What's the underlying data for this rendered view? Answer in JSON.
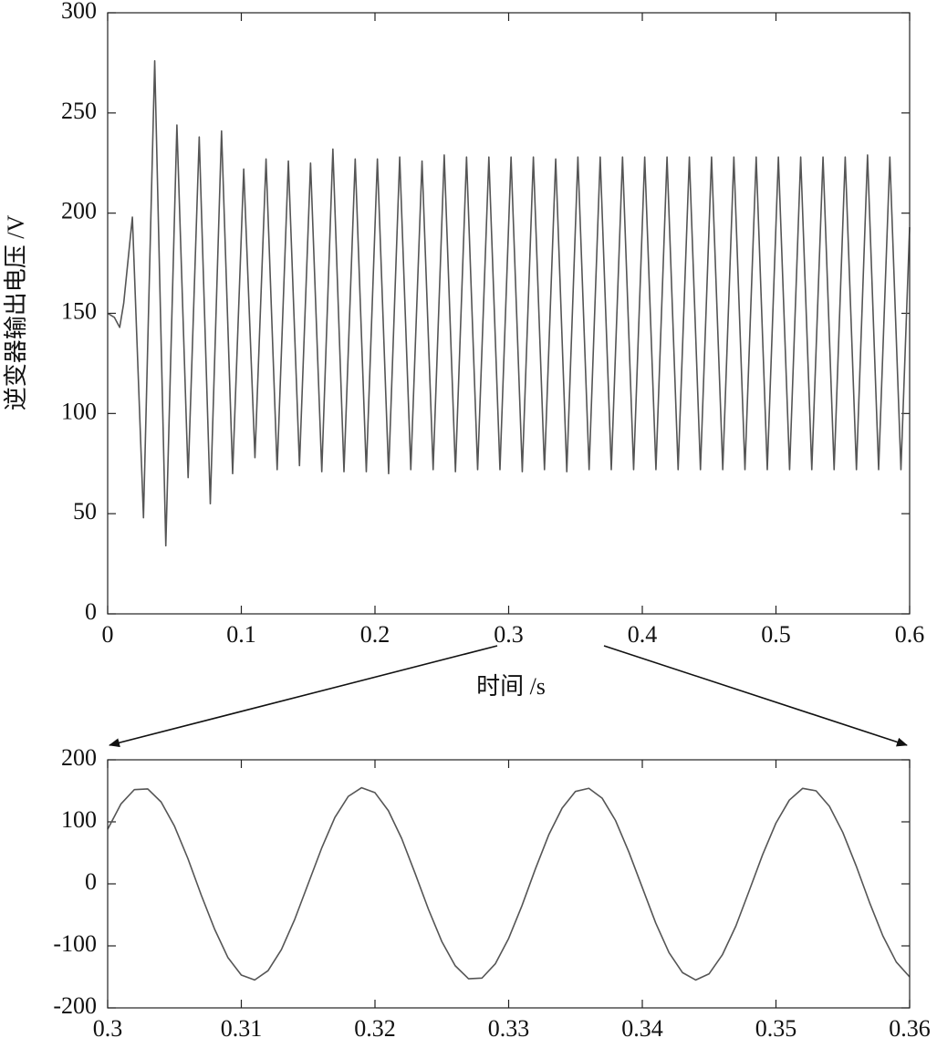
{
  "chart_data": [
    {
      "type": "line",
      "ylabel": "逆变器输出电压 /V",
      "xlabel": "时间 /s",
      "color": "#555555",
      "xlim": [
        0,
        0.6
      ],
      "ylim": [
        0,
        300
      ],
      "xticks": [
        0,
        0.1,
        0.2,
        0.3,
        0.4,
        0.5,
        0.6
      ],
      "yticks": [
        0,
        50,
        100,
        150,
        200,
        250,
        300
      ],
      "x": [
        0,
        0.005,
        0.009,
        0.012,
        0.0185,
        0.0268,
        0.0352,
        0.0435,
        0.0518,
        0.0602,
        0.0685,
        0.0768,
        0.0852,
        0.0935,
        0.1018,
        0.1102,
        0.1185,
        0.1268,
        0.1352,
        0.1435,
        0.1518,
        0.1602,
        0.1685,
        0.1768,
        0.1852,
        0.1935,
        0.2018,
        0.2102,
        0.2185,
        0.2268,
        0.2352,
        0.2435,
        0.2518,
        0.2602,
        0.2685,
        0.2768,
        0.2852,
        0.2935,
        0.3018,
        0.3102,
        0.3185,
        0.3268,
        0.3352,
        0.3435,
        0.3518,
        0.3602,
        0.3685,
        0.3768,
        0.3852,
        0.3935,
        0.4018,
        0.4102,
        0.4185,
        0.4268,
        0.4352,
        0.4435,
        0.4518,
        0.4602,
        0.4685,
        0.4768,
        0.4852,
        0.4935,
        0.5018,
        0.5102,
        0.5185,
        0.5268,
        0.5352,
        0.5435,
        0.5518,
        0.5602,
        0.5685,
        0.5768,
        0.5852,
        0.5935,
        0.6
      ],
      "values": [
        150,
        148,
        143,
        155,
        198,
        48,
        276,
        34,
        244,
        68,
        238,
        55,
        241,
        70,
        222,
        78,
        227,
        72,
        226,
        74,
        225,
        71,
        232,
        71,
        227,
        71,
        227,
        70,
        228,
        72,
        226,
        72,
        229,
        71,
        228,
        72,
        228,
        72,
        228,
        71,
        228,
        72,
        227,
        71,
        228,
        72,
        228,
        72,
        228,
        72,
        228,
        72,
        228,
        72,
        228,
        72,
        228,
        72,
        228,
        72,
        228,
        72,
        228,
        72,
        228,
        72,
        228,
        72,
        228,
        72,
        229,
        72,
        228,
        72,
        193
      ]
    },
    {
      "type": "line",
      "color": "#555555",
      "xlim": [
        0.3,
        0.36
      ],
      "ylim": [
        -200,
        200
      ],
      "xticks": [
        0.3,
        0.31,
        0.32,
        0.33,
        0.34,
        0.35,
        0.36
      ],
      "yticks": [
        -200,
        -100,
        0,
        100,
        200
      ],
      "x": [
        0.3,
        0.301,
        0.302,
        0.303,
        0.304,
        0.305,
        0.306,
        0.307,
        0.308,
        0.309,
        0.31,
        0.311,
        0.312,
        0.313,
        0.314,
        0.315,
        0.316,
        0.317,
        0.318,
        0.319,
        0.32,
        0.321,
        0.322,
        0.323,
        0.324,
        0.325,
        0.326,
        0.327,
        0.328,
        0.329,
        0.33,
        0.331,
        0.332,
        0.333,
        0.334,
        0.335,
        0.336,
        0.337,
        0.338,
        0.339,
        0.34,
        0.341,
        0.342,
        0.343,
        0.344,
        0.345,
        0.346,
        0.347,
        0.348,
        0.349,
        0.35,
        0.351,
        0.352,
        0.353,
        0.354,
        0.355,
        0.356,
        0.357,
        0.358,
        0.359,
        0.36
      ],
      "values": [
        88,
        129,
        152,
        153,
        132,
        93,
        41,
        -18,
        -73,
        -119,
        -147,
        -155,
        -140,
        -106,
        -57,
        0,
        57,
        107,
        141,
        155,
        147,
        118,
        73,
        17,
        -41,
        -93,
        -132,
        -153,
        -152,
        -129,
        -88,
        -35,
        24,
        79,
        122,
        149,
        154,
        138,
        102,
        51,
        -6,
        -63,
        -111,
        -143,
        -155,
        -145,
        -114,
        -68,
        -11,
        47,
        98,
        135,
        154,
        150,
        125,
        83,
        29,
        -30,
        -84,
        -126,
        -150
      ]
    }
  ]
}
